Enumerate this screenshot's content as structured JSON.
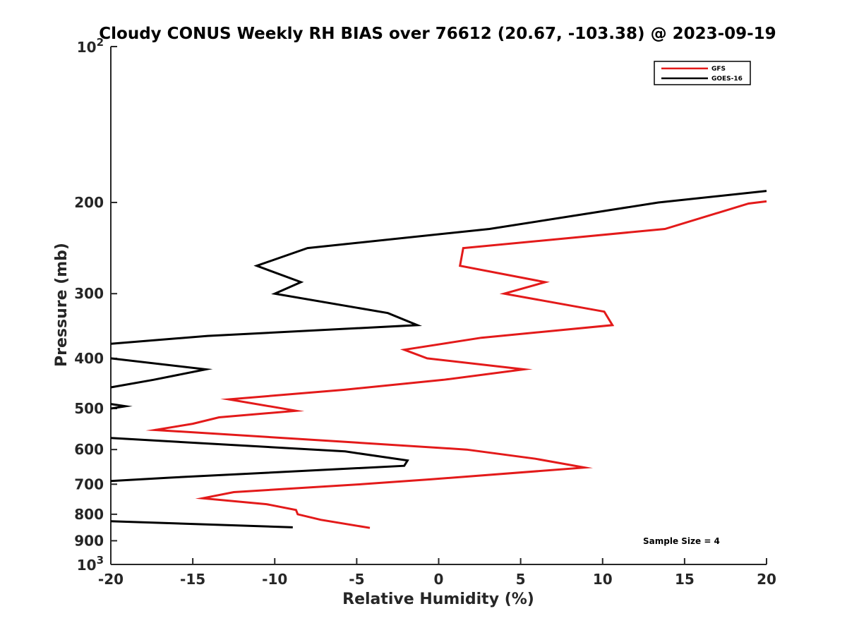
{
  "chart_data": {
    "type": "line",
    "title": "Cloudy CONUS Weekly RH BIAS over 76612 (20.67, -103.38) @ 2023-09-19",
    "xlabel": "Relative Humidity (%)",
    "ylabel": "Pressure (mb)",
    "xlim": [
      -20,
      20
    ],
    "ylim": [
      100,
      1000
    ],
    "y_scale": "log",
    "y_reversed": true,
    "x_ticks": [
      -20,
      -15,
      -10,
      -5,
      0,
      5,
      10,
      15,
      20
    ],
    "x_tick_labels": [
      "-20",
      "-15",
      "-10",
      "-5",
      "0",
      "5",
      "10",
      "15",
      "20"
    ],
    "y_ticks": [
      200,
      300,
      400,
      500,
      600,
      700,
      800,
      900
    ],
    "y_tick_labels": [
      "200",
      "300",
      "400",
      "500",
      "600",
      "700",
      "800",
      "900"
    ],
    "y_limit_labels": [
      {
        "base": "10",
        "exp": "2",
        "value": 100
      },
      {
        "base": "10",
        "exp": "3",
        "value": 1000
      }
    ],
    "legend_position": "top-right",
    "annotation": "Sample Size = 4",
    "series": [
      {
        "name": "GFS",
        "color": "#e31a1a",
        "points": [
          [
            -4.2,
            850
          ],
          [
            -7.2,
            820
          ],
          [
            -8.6,
            800
          ],
          [
            -8.7,
            785
          ],
          [
            -10.5,
            765
          ],
          [
            -14.4,
            745
          ],
          [
            -12.5,
            725
          ],
          [
            -4.7,
            700
          ],
          [
            -0.5,
            685
          ],
          [
            8.9,
            650
          ],
          [
            5.9,
            625
          ],
          [
            1.7,
            600
          ],
          [
            -5.6,
            580
          ],
          [
            -17.3,
            550
          ],
          [
            -15.0,
            535
          ],
          [
            -13.4,
            520
          ],
          [
            -8.7,
            505
          ],
          [
            -12.8,
            480
          ],
          [
            -5.8,
            460
          ],
          [
            0.3,
            440
          ],
          [
            5.2,
            420
          ],
          [
            -0.7,
            400
          ],
          [
            -2.1,
            385
          ],
          [
            2.6,
            365
          ],
          [
            10.6,
            345
          ],
          [
            10.1,
            325
          ],
          [
            4.0,
            300
          ],
          [
            6.5,
            285
          ],
          [
            1.3,
            265
          ],
          [
            1.5,
            245
          ],
          [
            13.8,
            225
          ],
          [
            18.9,
            201
          ],
          [
            20,
            199
          ]
        ]
      },
      {
        "name": "GOES-16",
        "color": "#000000",
        "points": [
          [
            -8.9,
            848
          ],
          [
            -20,
            825
          ],
          [
            null,
            null
          ],
          [
            -20,
            690
          ],
          [
            -16.5,
            680
          ],
          [
            -2.1,
            645
          ],
          [
            -1.9,
            630
          ],
          [
            -5.7,
            605
          ],
          [
            -20,
            570
          ],
          [
            null,
            null
          ],
          [
            -20,
            500
          ],
          [
            -19.1,
            495
          ],
          [
            -20,
            490
          ],
          [
            null,
            null
          ],
          [
            -20,
            455
          ],
          [
            -17.4,
            440
          ],
          [
            -14.2,
            420
          ],
          [
            -20,
            400
          ],
          [
            null,
            null
          ],
          [
            -20,
            375
          ],
          [
            -14.1,
            362
          ],
          [
            -1.3,
            345
          ],
          [
            -3.1,
            327
          ],
          [
            -10.0,
            300
          ],
          [
            -8.4,
            285
          ],
          [
            -11.1,
            265
          ],
          [
            -8.0,
            245
          ],
          [
            3.1,
            225
          ],
          [
            13.4,
            200
          ],
          [
            20,
            190
          ]
        ]
      }
    ]
  }
}
